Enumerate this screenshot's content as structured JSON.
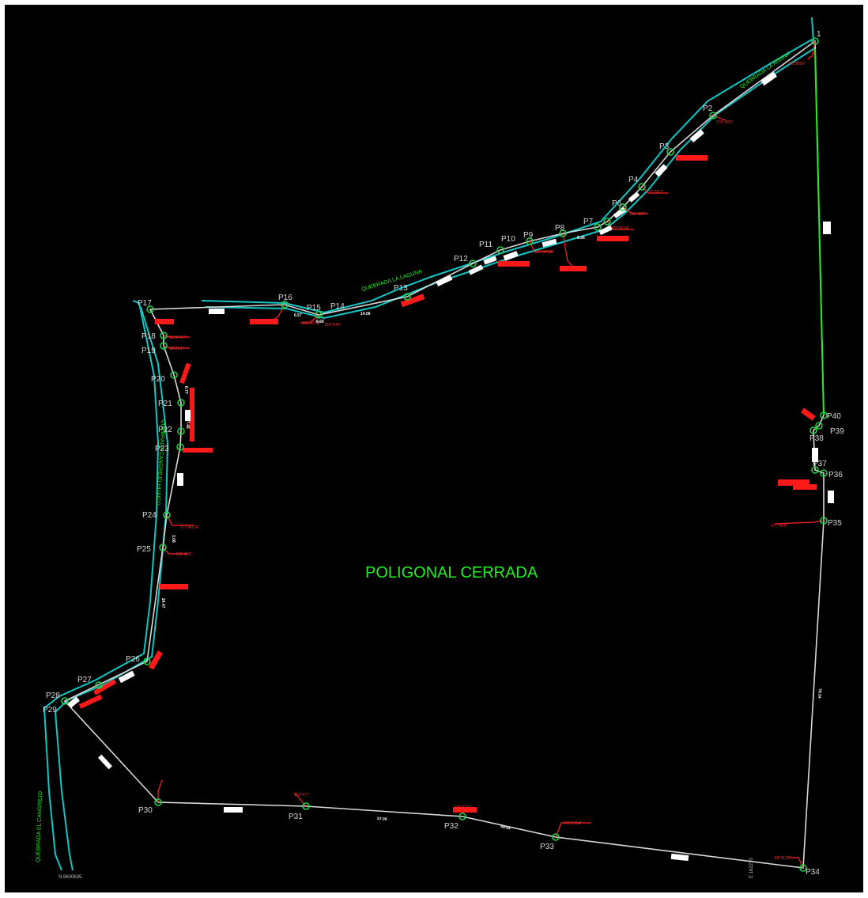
{
  "title": "POLIGONAL CERRADA",
  "colors": {
    "background": "#000000",
    "frame": "#ffffff",
    "boundary": "#d9d9d9",
    "creek": "#12c6c6",
    "green": "#22ee22",
    "red": "#ff1a1a",
    "white_label": "#ffffff",
    "vertex": "#22cc44"
  },
  "vertex_labels": {
    "p1": "1",
    "p2": "P2",
    "p3": "P3",
    "p4": "P4",
    "p6": "P6",
    "p7": "P7",
    "p8": "P8",
    "p9": "P9",
    "p10": "P10",
    "p11": "P11",
    "p12": "P12",
    "p13": "P13",
    "p14": "P14",
    "p15": "P15",
    "p16": "P16",
    "p17": "P17",
    "p18": "P18",
    "p19": "P19",
    "p20": "P20",
    "p21": "P21",
    "p22": "P22",
    "p23": "P23",
    "p24": "P24",
    "p25": "P25",
    "p26": "P26",
    "p27": "P27",
    "p28": "P28",
    "p29": "P29",
    "p30": "P30",
    "p31": "P31",
    "p32": "P32",
    "p33": "P33",
    "p34": "P34",
    "p35": "P35",
    "p36": "P36",
    "p37": "P37",
    "p38": "P38",
    "p39": "P39",
    "p40": "P40"
  },
  "creek_labels": {
    "top": "QUEBRADA LA AGUNA",
    "middle": "QUEBRADA LA LAGUNA",
    "west": "QUEBRADA CANGREJO HUAICO",
    "southwest": "QUEBRADA EL CANGREJO"
  },
  "angle_labels": {
    "a1": "98°38'56\"",
    "a2": "175°38'6\"",
    "a3": "127°55'7\"",
    "a4": "165°48'6\"",
    "a5": "173°54'14\"",
    "a6": "167°44'32\"",
    "a7": "166°43'50\"",
    "a8": "169°9'45\"",
    "a9": "81°46'17\"",
    "a10": "98°2'51\"",
    "a11": "177°40'14\"",
    "a12": "176°44'6\"",
    "a13": "153°4'7\"",
    "a14": "156°57'3\"",
    "a15": "178°13'54\"",
    "a16": "84°41'28\"",
    "a17": "177°49'6\""
  },
  "distance_labels": {
    "d1": "6.57",
    "d2": "8.36",
    "d3": "14.06",
    "d4": "8.66",
    "d5": "3.06",
    "d6": "6.77",
    "d7": "7.46",
    "d8": "24.47",
    "d9": "57.06",
    "d10": "69.43",
    "d11": "78.34"
  },
  "coordinates": {
    "north": "N 8600635",
    "east": "E 162270"
  }
}
